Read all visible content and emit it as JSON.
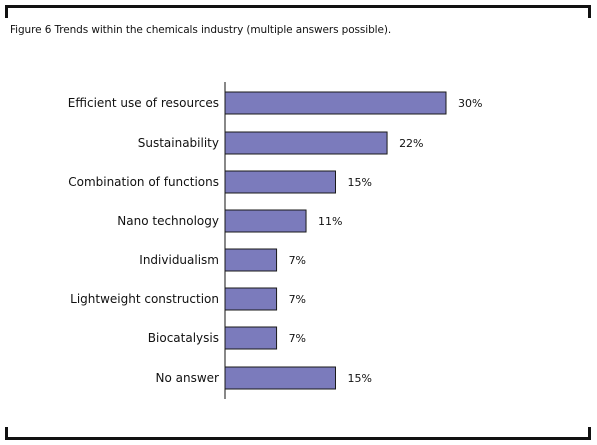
{
  "figure": {
    "title": "Figure 6 Trends within the chemicals industry (multiple answers possible)."
  },
  "chart_data": {
    "type": "bar",
    "orientation": "horizontal",
    "title": "Figure 6 Trends within the chemicals industry (multiple answers possible).",
    "categories": [
      "Efficient use of resources",
      "Sustainability",
      "Combination of functions",
      "Nano technology",
      "Individualism",
      "Lightweight construction",
      "Biocatalysis",
      "No answer"
    ],
    "values": [
      30,
      22,
      15,
      11,
      7,
      7,
      7,
      15
    ],
    "value_labels": [
      "30%",
      "22%",
      "15%",
      "11%",
      "7%",
      "7%",
      "7%",
      "15%"
    ],
    "unit": "%",
    "xlim": [
      0,
      30
    ],
    "grid": false,
    "legend": "none",
    "colors": {
      "bar": "#7b7bbc",
      "bar_stroke": "#1a1a1a",
      "axis": "#111111"
    }
  }
}
